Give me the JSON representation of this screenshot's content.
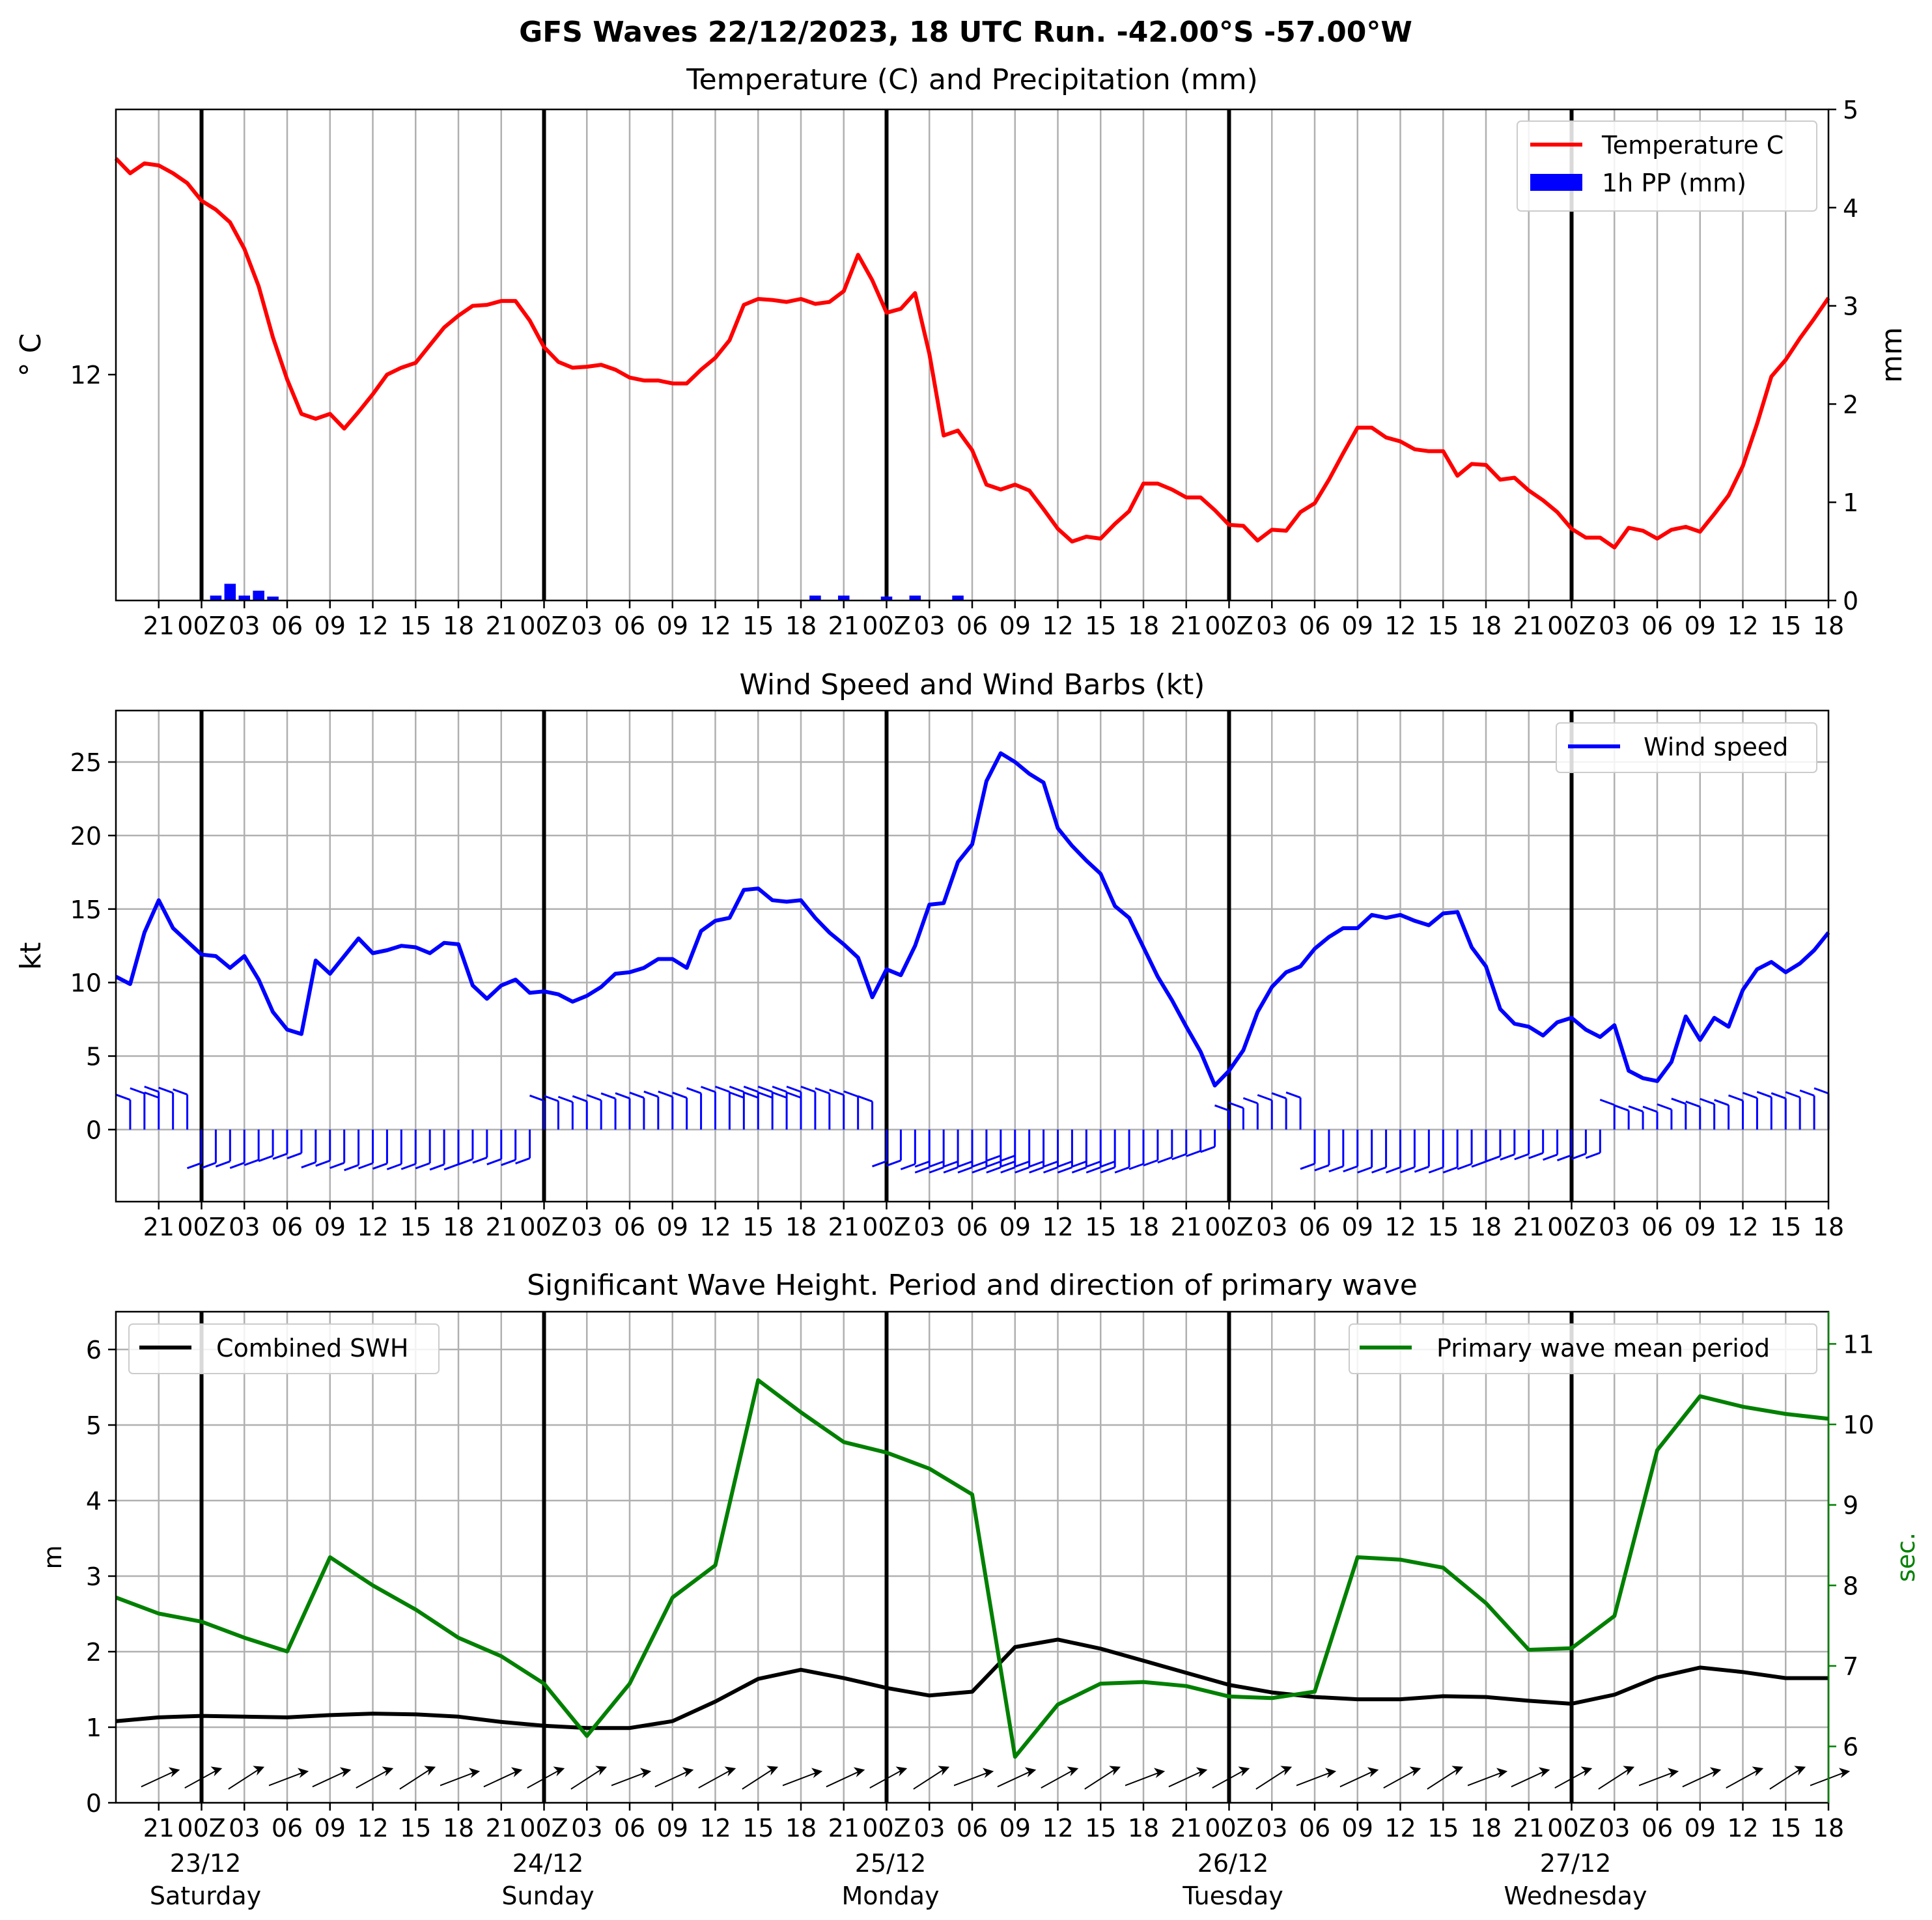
{
  "suptitle": "GFS Waves 22/12/2023, 18 UTC Run. -42.00°S -57.00°W",
  "colors": {
    "temperature": "#ff0000",
    "precip": "#0000ff",
    "wind": "#0000ff",
    "swh": "#000000",
    "period": "#008000",
    "grid": "#b0b0b0"
  },
  "time_axis": {
    "start_hour": 15,
    "end_hour": 135,
    "day_lines": [
      21,
      45,
      69,
      93,
      117
    ],
    "tick_labels": [
      {
        "h": 18,
        "l": "21"
      },
      {
        "h": 21,
        "l": "00Z"
      },
      {
        "h": 24,
        "l": "03"
      },
      {
        "h": 27,
        "l": "06"
      },
      {
        "h": 30,
        "l": "09"
      },
      {
        "h": 33,
        "l": "12"
      },
      {
        "h": 36,
        "l": "15"
      },
      {
        "h": 39,
        "l": "18"
      },
      {
        "h": 42,
        "l": "21"
      },
      {
        "h": 45,
        "l": "00Z"
      },
      {
        "h": 48,
        "l": "03"
      },
      {
        "h": 51,
        "l": "06"
      },
      {
        "h": 54,
        "l": "09"
      },
      {
        "h": 57,
        "l": "12"
      },
      {
        "h": 60,
        "l": "15"
      },
      {
        "h": 63,
        "l": "18"
      },
      {
        "h": 66,
        "l": "21"
      },
      {
        "h": 69,
        "l": "00Z"
      },
      {
        "h": 72,
        "l": "03"
      },
      {
        "h": 75,
        "l": "06"
      },
      {
        "h": 78,
        "l": "09"
      },
      {
        "h": 81,
        "l": "12"
      },
      {
        "h": 84,
        "l": "15"
      },
      {
        "h": 87,
        "l": "18"
      },
      {
        "h": 90,
        "l": "21"
      },
      {
        "h": 93,
        "l": "00Z"
      },
      {
        "h": 96,
        "l": "03"
      },
      {
        "h": 99,
        "l": "06"
      },
      {
        "h": 102,
        "l": "09"
      },
      {
        "h": 105,
        "l": "12"
      },
      {
        "h": 108,
        "l": "15"
      },
      {
        "h": 111,
        "l": "18"
      },
      {
        "h": 114,
        "l": "21"
      },
      {
        "h": 117,
        "l": "00Z"
      },
      {
        "h": 120,
        "l": "03"
      },
      {
        "h": 123,
        "l": "06"
      },
      {
        "h": 126,
        "l": "09"
      },
      {
        "h": 129,
        "l": "12"
      },
      {
        "h": 132,
        "l": "15"
      },
      {
        "h": 135,
        "l": "18"
      }
    ],
    "day_labels": [
      {
        "h": 21,
        "date": "23/12",
        "weekday": "Saturday"
      },
      {
        "h": 45,
        "date": "24/12",
        "weekday": "Sunday"
      },
      {
        "h": 69,
        "date": "25/12",
        "weekday": "Monday"
      },
      {
        "h": 93,
        "date": "26/12",
        "weekday": "Tuesday"
      },
      {
        "h": 117,
        "date": "27/12",
        "weekday": "Wednesday"
      }
    ]
  },
  "chart_data": [
    {
      "type": "line",
      "title": "Temperature (C) and Precipitation (mm)",
      "ylabel": "° C",
      "y2label": "mm",
      "ylim": [
        9.7,
        14.7
      ],
      "yticks": [
        12
      ],
      "y2lim": [
        0,
        5
      ],
      "y2ticks": [
        0,
        1,
        2,
        3,
        4,
        5
      ],
      "grid": "vertical",
      "legend": "top-right",
      "series": [
        {
          "name": "Temperature C",
          "axis": "left",
          "x": [
            15,
            16,
            17,
            18,
            19,
            20,
            21,
            22,
            23,
            24,
            25,
            26,
            27,
            28,
            29,
            30,
            31,
            32,
            33,
            34,
            35,
            36,
            37,
            38,
            39,
            40,
            41,
            42,
            43,
            44,
            45,
            46,
            47,
            48,
            49,
            50,
            51,
            52,
            53,
            54,
            55,
            56,
            57,
            58,
            59,
            60,
            61,
            62,
            63,
            64,
            65,
            66,
            67,
            68,
            69,
            70,
            71,
            72,
            73,
            74,
            75,
            76,
            77,
            78,
            79,
            80,
            81,
            82,
            83,
            84,
            85,
            86,
            87,
            88,
            89,
            90,
            91,
            92,
            93,
            94,
            95,
            96,
            97,
            98,
            99,
            100,
            101,
            102,
            103,
            104,
            105,
            106,
            107,
            108,
            109,
            110,
            111,
            112,
            113,
            114,
            115,
            116,
            117,
            118,
            119,
            120,
            121,
            122,
            123,
            124,
            125,
            126,
            127,
            128,
            129,
            130,
            131,
            132,
            133,
            134,
            135
          ],
          "y": [
            14.2,
            14.05,
            14.15,
            14.13,
            14.05,
            13.95,
            13.77,
            13.68,
            13.55,
            13.28,
            12.9,
            12.38,
            11.95,
            11.6,
            11.55,
            11.6,
            11.45,
            11.62,
            11.8,
            12.0,
            12.07,
            12.12,
            12.3,
            12.48,
            12.6,
            12.7,
            12.71,
            12.75,
            12.75,
            12.55,
            12.28,
            12.13,
            12.07,
            12.08,
            12.1,
            12.05,
            11.97,
            11.94,
            11.94,
            11.91,
            11.91,
            12.05,
            12.17,
            12.35,
            12.71,
            12.77,
            12.76,
            12.74,
            12.77,
            12.72,
            12.74,
            12.85,
            13.22,
            12.96,
            12.63,
            12.67,
            12.83,
            12.21,
            11.38,
            11.43,
            11.23,
            10.88,
            10.83,
            10.88,
            10.82,
            10.63,
            10.43,
            10.3,
            10.35,
            10.33,
            10.48,
            10.61,
            10.89,
            10.89,
            10.83,
            10.75,
            10.75,
            10.62,
            10.47,
            10.46,
            10.31,
            10.42,
            10.41,
            10.6,
            10.69,
            10.93,
            11.2,
            11.46,
            11.46,
            11.36,
            11.32,
            11.24,
            11.22,
            11.22,
            10.97,
            11.09,
            11.08,
            10.93,
            10.95,
            10.82,
            10.72,
            10.6,
            10.43,
            10.34,
            10.34,
            10.24,
            10.44,
            10.41,
            10.33,
            10.42,
            10.45,
            10.4,
            10.58,
            10.77,
            11.07,
            11.5,
            11.98,
            12.15,
            12.37,
            12.57,
            12.78
          ]
        },
        {
          "name": "1h PP (mm)",
          "axis": "right",
          "type": "bar",
          "x": [
            22,
            23,
            24,
            25,
            26,
            64,
            66,
            69,
            71,
            74
          ],
          "y": [
            0.05,
            0.17,
            0.05,
            0.1,
            0.04,
            0.05,
            0.05,
            0.04,
            0.05,
            0.05
          ]
        }
      ]
    },
    {
      "type": "line",
      "title": "Wind Speed and Wind Barbs (kt)",
      "ylabel": "kt",
      "ylim": [
        -4.9,
        28.5
      ],
      "yticks": [
        0,
        5,
        10,
        15,
        20,
        25
      ],
      "grid": "both",
      "legend": "top-right",
      "series": [
        {
          "name": "Wind speed",
          "x": [
            15,
            16,
            17,
            18,
            19,
            20,
            21,
            22,
            23,
            24,
            25,
            26,
            27,
            28,
            29,
            30,
            31,
            32,
            33,
            34,
            35,
            36,
            37,
            38,
            39,
            40,
            41,
            42,
            43,
            44,
            45,
            46,
            47,
            48,
            49,
            50,
            51,
            52,
            53,
            54,
            55,
            56,
            57,
            58,
            59,
            60,
            61,
            62,
            63,
            64,
            65,
            66,
            67,
            68,
            69,
            70,
            71,
            72,
            73,
            74,
            75,
            76,
            77,
            78,
            79,
            80,
            81,
            82,
            83,
            84,
            85,
            86,
            87,
            88,
            89,
            90,
            91,
            92,
            93,
            94,
            95,
            96,
            97,
            98,
            99,
            100,
            101,
            102,
            103,
            104,
            105,
            106,
            107,
            108,
            109,
            110,
            111,
            112,
            113,
            114,
            115,
            116,
            117,
            118,
            119,
            120,
            121,
            122,
            123,
            124,
            125,
            126,
            127,
            128,
            129,
            130,
            131,
            132,
            133,
            134,
            135
          ],
          "y": [
            10.4,
            9.9,
            13.4,
            15.6,
            13.7,
            12.8,
            11.9,
            11.8,
            11.0,
            11.8,
            10.2,
            8.0,
            6.8,
            6.5,
            11.5,
            10.6,
            11.8,
            13.0,
            12.0,
            12.2,
            12.5,
            12.4,
            12.0,
            12.7,
            12.6,
            9.8,
            8.9,
            9.8,
            10.2,
            9.3,
            9.4,
            9.2,
            8.7,
            9.1,
            9.7,
            10.6,
            10.7,
            11.0,
            11.6,
            11.6,
            11.0,
            13.5,
            14.2,
            14.4,
            16.3,
            16.4,
            15.6,
            15.5,
            15.6,
            14.4,
            13.4,
            12.6,
            11.7,
            9.0,
            10.9,
            10.5,
            12.5,
            15.3,
            15.4,
            18.2,
            19.4,
            23.7,
            25.6,
            25.0,
            24.2,
            23.6,
            20.5,
            19.3,
            18.3,
            17.4,
            15.2,
            14.4,
            12.4,
            10.4,
            8.8,
            7.0,
            5.3,
            3.0,
            4.0,
            5.4,
            8.0,
            9.7,
            10.7,
            11.1,
            12.3,
            13.1,
            13.7,
            13.7,
            14.6,
            14.4,
            14.6,
            14.2,
            13.9,
            14.7,
            14.8,
            12.4,
            11.1,
            8.2,
            7.2,
            7.0,
            6.4,
            7.3,
            7.6,
            6.8,
            6.3,
            7.1,
            4.0,
            3.5,
            3.3,
            4.6,
            7.7,
            6.1,
            7.6,
            7.0,
            9.5,
            10.9,
            11.4,
            10.7,
            11.3,
            12.2,
            13.4
          ]
        }
      ]
    },
    {
      "type": "line",
      "title": "Significant Wave Height. Period and direction of primary wave",
      "ylabel": "m",
      "y2label": "sec.",
      "ylim": [
        0,
        6.5
      ],
      "yticks": [
        0,
        1,
        2,
        3,
        4,
        5,
        6
      ],
      "y2lim": [
        5.3,
        11.4
      ],
      "y2ticks": [
        6,
        7,
        8,
        9,
        10,
        11
      ],
      "grid": "both",
      "series": [
        {
          "name": "Combined SWH",
          "axis": "left",
          "legend": "top-left",
          "x": [
            15,
            18,
            21,
            24,
            27,
            30,
            33,
            36,
            39,
            42,
            45,
            48,
            51,
            54,
            57,
            60,
            63,
            66,
            69,
            72,
            75,
            78,
            81,
            84,
            87,
            90,
            93,
            96,
            99,
            102,
            105,
            108,
            111,
            114,
            117,
            120,
            123,
            126,
            129,
            132,
            135
          ],
          "y": [
            1.08,
            1.13,
            1.15,
            1.14,
            1.13,
            1.16,
            1.18,
            1.17,
            1.14,
            1.07,
            1.02,
            0.99,
            0.99,
            1.08,
            1.34,
            1.64,
            1.76,
            1.65,
            1.52,
            1.42,
            1.47,
            2.06,
            2.16,
            2.04,
            1.88,
            1.72,
            1.56,
            1.46,
            1.4,
            1.37,
            1.37,
            1.41,
            1.4,
            1.35,
            1.31,
            1.43,
            1.66,
            1.79,
            1.73,
            1.65,
            1.65
          ]
        },
        {
          "name": "Primary wave mean period",
          "axis": "right",
          "legend": "top-right",
          "x": [
            15,
            18,
            21,
            24,
            27,
            30,
            33,
            36,
            39,
            42,
            45,
            48,
            51,
            54,
            57,
            60,
            63,
            66,
            69,
            72,
            75,
            78,
            81,
            84,
            87,
            90,
            93,
            96,
            99,
            102,
            105,
            108,
            111,
            114,
            117,
            120,
            123,
            126,
            129,
            132,
            135
          ],
          "y": [
            7.85,
            7.65,
            7.55,
            7.35,
            7.18,
            8.35,
            8.0,
            7.7,
            7.35,
            7.12,
            6.78,
            6.13,
            6.78,
            7.85,
            8.25,
            10.55,
            10.15,
            9.78,
            9.65,
            9.45,
            9.13,
            5.87,
            6.52,
            6.78,
            6.8,
            6.75,
            6.62,
            6.6,
            6.68,
            8.35,
            8.32,
            8.22,
            7.78,
            7.2,
            7.22,
            7.62,
            9.68,
            10.35,
            10.22,
            10.13,
            10.07
          ]
        }
      ]
    }
  ]
}
